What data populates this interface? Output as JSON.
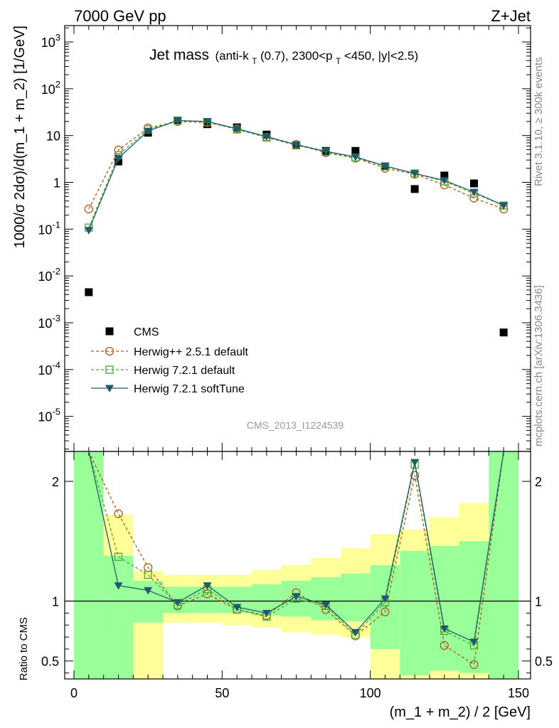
{
  "header": {
    "left": "7000 GeV pp",
    "right": "Z+Jet"
  },
  "plot_title": {
    "main": "Jet mass",
    "rest": "(anti-k",
    "sub1": "T",
    "mid": "(0.7), 2300<p",
    "sub2": "T",
    "tail": "<450, |y|<2.5)"
  },
  "side_labels": {
    "rivet": "Rivet 3.1.10, ≥ 300k events",
    "mcplots": "mcplots.cern.ch [arXiv:1306.3436]"
  },
  "watermark": "CMS_2013_I1224539",
  "colors": {
    "cms": "#000000",
    "herwigpp": "#b05a14",
    "herwig721": "#4aa832",
    "softtune": "#1f5a6e",
    "band_green": "#99ff99",
    "band_yellow": "#ffff99"
  },
  "chart_data": [
    {
      "type": "scatter",
      "title": "Jet mass (anti-kT(0.7), 2300<pT<450, |y|<2.5)",
      "ylabel": "1000/σ 2dσ)/d(m_1 + m_2) [1/GeV]",
      "xlim": [
        0,
        150
      ],
      "ylim_log10": [
        -5.75,
        3.35
      ],
      "yscale": "log",
      "y_tick_labels": [
        "10^3",
        "10^2",
        "10",
        "1",
        "10^-1",
        "10^-2",
        "10^-3",
        "10^-4",
        "10^-5"
      ],
      "legend_placement": "lower-left",
      "series": [
        {
          "name": "CMS",
          "x": [
            5,
            15,
            25,
            35,
            45,
            55,
            65,
            75,
            85,
            95,
            105,
            115,
            125,
            135,
            145
          ],
          "y": [
            0.0045,
            2.8,
            11.5,
            21,
            17.5,
            15,
            10.5,
            6.2,
            4.7,
            4.7,
            2.2,
            0.72,
            1.4,
            0.95,
            0.00062
          ]
        },
        {
          "name": "Herwig++ 2.5.1 default",
          "x": [
            5,
            15,
            25,
            35,
            45,
            55,
            65,
            75,
            85,
            95,
            105,
            115,
            125,
            135,
            145
          ],
          "y": [
            0.27,
            4.9,
            14.5,
            20,
            19,
            14,
            9.3,
            6.5,
            4.3,
            3.3,
            2.0,
            1.5,
            0.88,
            0.46,
            0.27
          ]
        },
        {
          "name": "Herwig 7.2.1 default",
          "x": [
            5,
            15,
            25,
            35,
            45,
            55,
            65,
            75,
            85,
            95,
            105,
            115,
            125,
            135,
            145
          ],
          "y": [
            0.108,
            3.8,
            13.5,
            21,
            19.5,
            13.5,
            9.1,
            6.2,
            4.5,
            3.4,
            2.2,
            1.55,
            1.05,
            0.58,
            0.32
          ]
        },
        {
          "name": "Herwig 7.2.1 softTune",
          "x": [
            5,
            15,
            25,
            35,
            45,
            55,
            65,
            75,
            85,
            95,
            105,
            115,
            125,
            135,
            145
          ],
          "y": [
            0.095,
            3.3,
            12.5,
            21,
            20,
            14,
            9.5,
            6.4,
            4.6,
            3.5,
            2.25,
            1.55,
            1.1,
            0.62,
            0.32
          ]
        }
      ]
    },
    {
      "type": "line",
      "ylabel": "Ratio to CMS",
      "xlabel": "(m_1 + m_2) / 2 [GeV]",
      "xlim": [
        0,
        150
      ],
      "ylim": [
        0.35,
        2.25
      ],
      "x_ticks": [
        0,
        50,
        100,
        150
      ],
      "y_ticks": [
        0.5,
        1,
        2
      ],
      "reference_line": 1,
      "bands": {
        "edges": [
          0,
          10,
          20,
          30,
          40,
          50,
          60,
          70,
          80,
          90,
          100,
          110,
          120,
          130,
          140,
          150
        ],
        "green_lo": [
          0.35,
          0.35,
          0.82,
          0.9,
          0.9,
          0.9,
          0.88,
          0.87,
          0.84,
          0.83,
          0.6,
          0.38,
          0.42,
          0.4,
          0.35
        ],
        "green_hi": [
          2.25,
          1.38,
          1.17,
          1.12,
          1.12,
          1.12,
          1.14,
          1.17,
          1.2,
          1.23,
          1.3,
          1.42,
          1.46,
          1.5,
          2.25
        ],
        "yellow_lo": [
          0.35,
          0.7,
          0.35,
          0.82,
          0.82,
          0.8,
          0.78,
          0.74,
          0.72,
          0.7,
          0.35,
          0.35,
          0.35,
          0.35,
          0.35
        ],
        "yellow_hi": [
          2.25,
          1.72,
          1.25,
          1.22,
          1.22,
          1.22,
          1.26,
          1.3,
          1.36,
          1.44,
          1.56,
          1.6,
          1.7,
          1.82,
          2.25
        ]
      },
      "series": [
        {
          "name": "Herwig++ 2.5.1 default",
          "x": [
            15,
            25,
            35,
            45,
            55,
            65,
            75,
            85,
            95,
            105,
            115,
            125,
            135
          ],
          "y": [
            1.73,
            1.28,
            0.96,
            1.06,
            0.93,
            0.88,
            1.07,
            0.93,
            0.71,
            0.91,
            2.05,
            0.63,
            0.47
          ],
          "offscale_left": [
            2.3,
            3.0
          ],
          "offscale_right": 3.0
        },
        {
          "name": "Herwig 7.2.1 default",
          "x": [
            15,
            25,
            35,
            45,
            55,
            65,
            75,
            85,
            95,
            105,
            115,
            125,
            135
          ],
          "y": [
            1.37,
            1.22,
            0.97,
            1.1,
            0.93,
            0.87,
            1.02,
            0.96,
            0.72,
            0.99,
            2.14,
            0.75,
            0.63
          ],
          "offscale_left": [
            2.3,
            3.0
          ],
          "offscale_right": 3.0
        },
        {
          "name": "Herwig 7.2.1 softTune",
          "x": [
            15,
            25,
            35,
            45,
            55,
            65,
            75,
            85,
            95,
            105,
            115,
            125,
            135
          ],
          "y": [
            1.13,
            1.09,
            0.99,
            1.13,
            0.95,
            0.9,
            1.04,
            0.97,
            0.74,
            1.02,
            2.16,
            0.77,
            0.66
          ],
          "offscale_left": [
            2.3,
            3.0
          ],
          "offscale_right": 3.0
        }
      ]
    }
  ]
}
